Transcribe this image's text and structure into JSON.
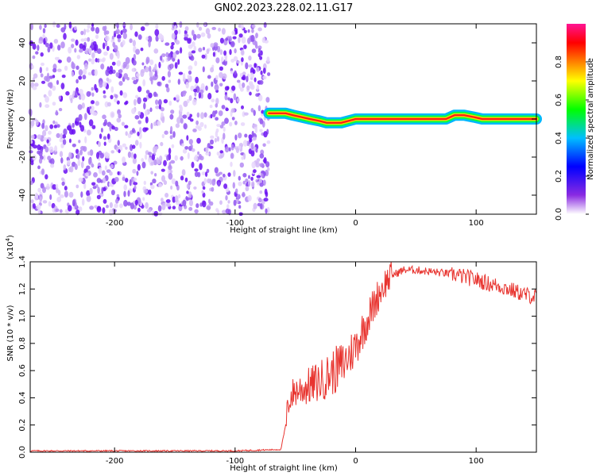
{
  "figure": {
    "title": "GN02.2023.228.02.11.G17"
  },
  "colors": {
    "signal_line": "#e8342f",
    "noise_purple": "#6a0ff2",
    "frame": "#000000"
  },
  "chart_data": [
    {
      "type": "heatmap",
      "xlabel": "Height of straight line (km)",
      "ylabel": "Frequency (Hz)",
      "xlim": [
        -270,
        150
      ],
      "ylim": [
        -50,
        50
      ],
      "x_ticks": [
        -200,
        -100,
        0,
        100
      ],
      "x_tick_labels": [
        "-200",
        "-100",
        "0",
        "100"
      ],
      "y_ticks": [
        -40,
        -20,
        0,
        20,
        40
      ],
      "y_tick_labels": [
        "-40",
        "-20",
        "0",
        "20",
        "40"
      ],
      "noise_region_x": [
        -270,
        -72
      ],
      "ridge_track": {
        "x": [
          -72,
          -65,
          -58,
          -52,
          -45,
          -38,
          -30,
          -24,
          -18,
          -12,
          -6,
          0,
          10,
          20,
          40,
          60,
          75,
          82,
          90,
          98,
          105,
          120,
          150
        ],
        "frequency": [
          3,
          3,
          3,
          2,
          1,
          0,
          -1,
          -2,
          -2,
          -2,
          -1,
          0,
          0,
          0,
          0,
          0,
          0,
          2,
          2,
          1,
          0,
          0,
          0
        ]
      },
      "colorbar": {
        "label": "Normalized spectral amplitude",
        "range": [
          0,
          1
        ],
        "ticks": [
          0,
          0.2,
          0.4,
          0.6,
          0.8
        ],
        "tick_labels": [
          "0.0",
          "0.2",
          "0.4",
          "0.6",
          "0.8"
        ],
        "colormap": [
          "#ffffff",
          "#8a2be2",
          "#0000ff",
          "#00bfff",
          "#00ff00",
          "#ffff00",
          "#ff8000",
          "#ff0000",
          "#ff1493"
        ]
      }
    },
    {
      "type": "line",
      "xlabel": "Height of straight line (km)",
      "ylabel": "SNR (10 * v/v)",
      "y_multiplier_label": "(x10",
      "y_multiplier_exp": "4",
      "y_multiplier_close": ")",
      "xlim": [
        -270,
        150
      ],
      "ylim": [
        0,
        1.4
      ],
      "x_ticks": [
        -200,
        -100,
        0,
        100
      ],
      "x_tick_labels": [
        "-200",
        "-100",
        "0",
        "100"
      ],
      "y_ticks": [
        0,
        0.2,
        0.4,
        0.6,
        0.8,
        1.0,
        1.2,
        1.4
      ],
      "y_tick_labels": [
        "0.0",
        "0.2",
        "0.4",
        "0.6",
        "0.8",
        "1.0",
        "1.2",
        "1.4"
      ],
      "series": [
        {
          "x": [
            -270,
            -200,
            -100,
            -62,
            -58,
            -55,
            -50,
            -40,
            -30,
            -20,
            -10,
            0,
            10,
            20,
            25,
            30,
            40,
            50,
            60,
            70,
            80,
            90,
            100,
            110,
            120,
            130,
            140,
            150
          ],
          "y": [
            0.01,
            0.01,
            0.01,
            0.02,
            0.2,
            0.4,
            0.45,
            0.48,
            0.52,
            0.58,
            0.65,
            0.78,
            0.98,
            1.18,
            1.25,
            1.3,
            1.34,
            1.34,
            1.33,
            1.32,
            1.31,
            1.29,
            1.27,
            1.24,
            1.22,
            1.19,
            1.16,
            1.14
          ]
        }
      ]
    }
  ]
}
